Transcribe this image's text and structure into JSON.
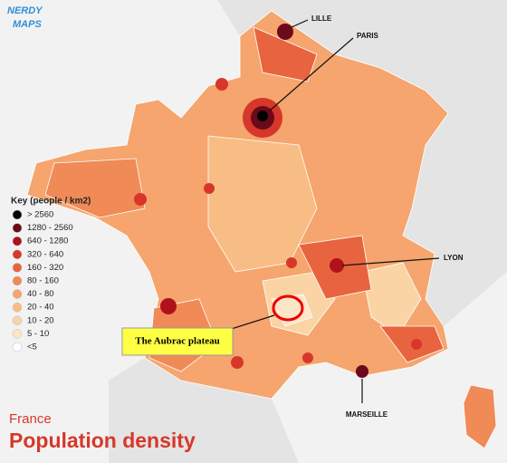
{
  "logo": {
    "line1": "NERDY",
    "line2": "MAPS"
  },
  "legend": {
    "title": "Key (people / km2)",
    "items": [
      {
        "label": "> 2560",
        "color": "#000000"
      },
      {
        "label": "1280 - 2560",
        "color": "#6b0a1a"
      },
      {
        "label": "640 - 1280",
        "color": "#b0121b"
      },
      {
        "label": "320 - 640",
        "color": "#d7372a"
      },
      {
        "label": "160 - 320",
        "color": "#e8643f"
      },
      {
        "label": "80 - 160",
        "color": "#f08a56"
      },
      {
        "label": "40 - 80",
        "color": "#f5a56d"
      },
      {
        "label": "20 - 40",
        "color": "#f8bd85"
      },
      {
        "label": "10 - 20",
        "color": "#fbd4a6"
      },
      {
        "label": "5 - 10",
        "color": "#fde6c8"
      },
      {
        "label": "<5",
        "color": "#ffffff"
      }
    ]
  },
  "cities": [
    "LILLE",
    "PARIS",
    "LYON",
    "MARSEILLE"
  ],
  "annotation": "The Aubrac plateau",
  "title": {
    "country": "France",
    "subtitle": "Population density"
  }
}
